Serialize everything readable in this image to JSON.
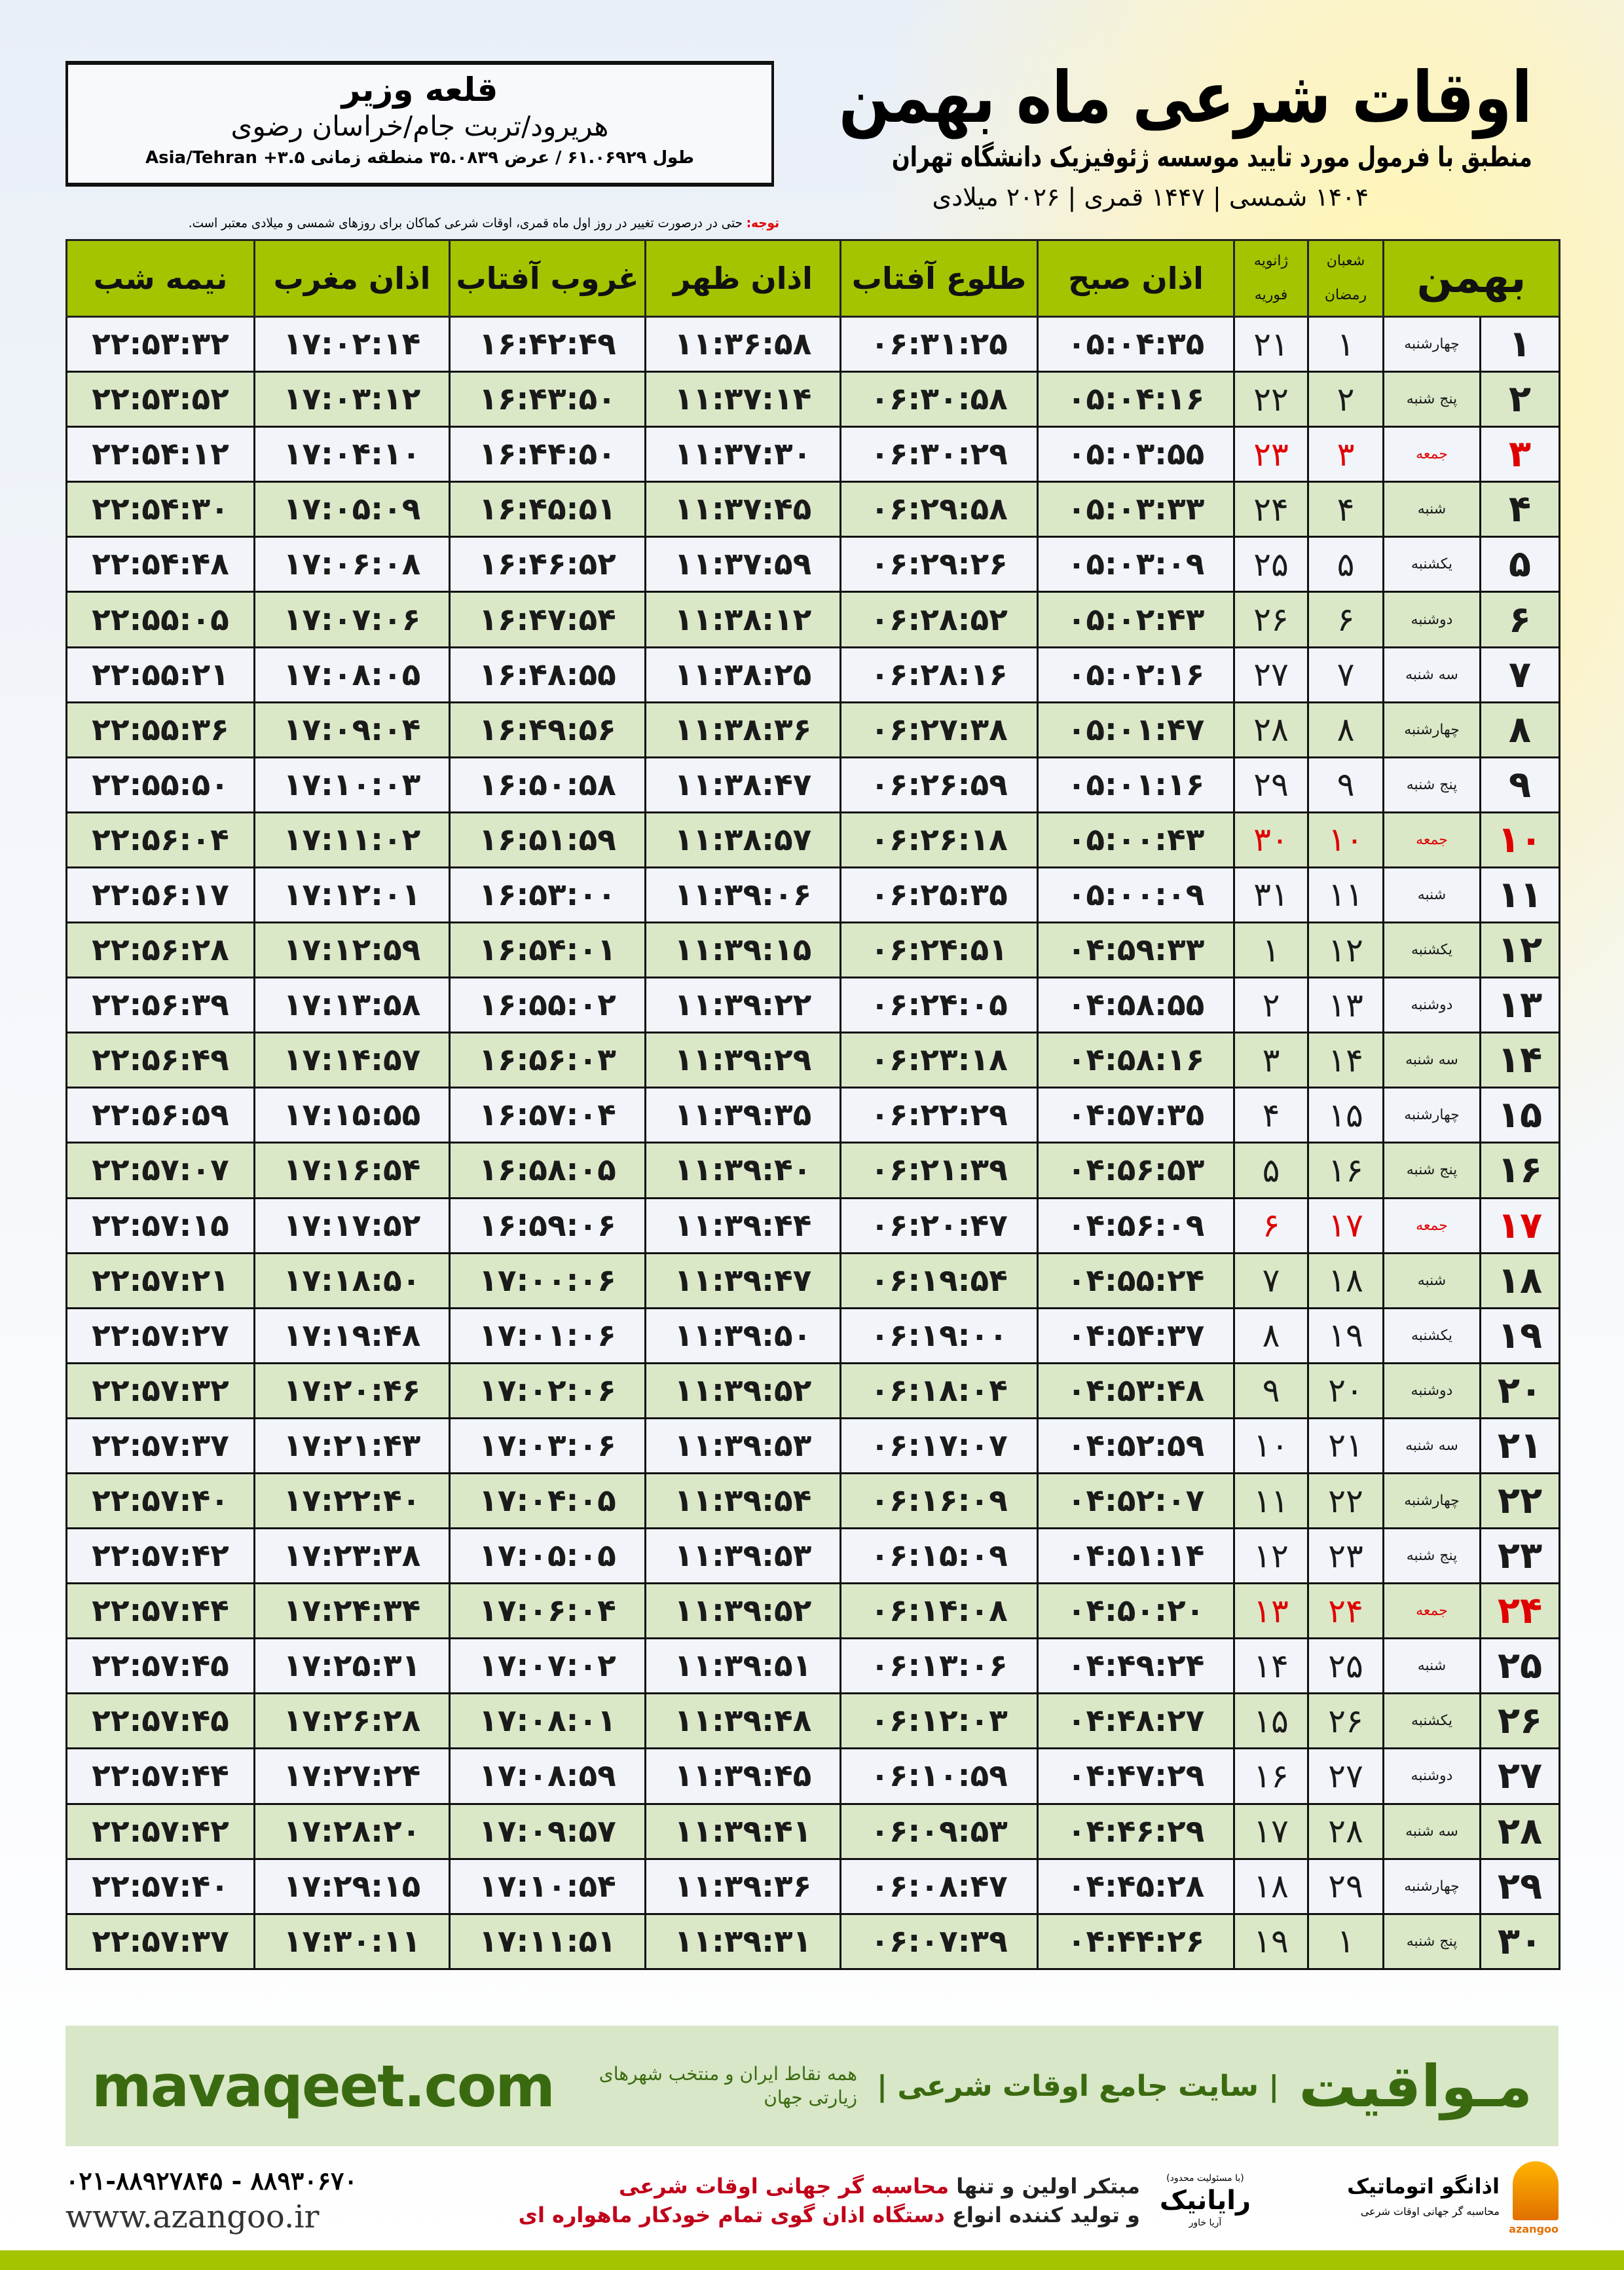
{
  "header": {
    "title": "اوقات شرعی ماه بهمن",
    "subtitle": "منطبق با فرمول مورد تایید موسسه ژئوفیزیک دانشگاه تهران",
    "dates": "۱۴۰۴ شمسی | ۱۴۴۷ قمری | ۲۰۲۶ میلادی"
  },
  "location": {
    "city": "قلعه وزیر",
    "region": "هریرود/تربت جام/خراسان رضوی",
    "coords": "طول ۶۱.۰۶۹۲۹ / عرض ۳۵.۰۸۳۹ منطقه زمانی ۳.۵+ Asia/Tehran"
  },
  "note": {
    "label": "توجه:",
    "text": " حتی در درصورت تغییر در روز اول ماه قمری، اوقات شرعی کماکان برای روزهای شمسی و میلادی معتبر است."
  },
  "table": {
    "headers": {
      "month": "بهمن",
      "hijri_top": "شعبان",
      "hijri_bottom": "رمضان",
      "greg_top": "ژانویه",
      "greg_bottom": "فوریه",
      "fajr": "اذان صبح",
      "sunrise": "طلوع آفتاب",
      "dhuhr": "اذان ظهر",
      "sunset": "غروب آفتاب",
      "maghrib": "اذان مغرب",
      "midnight": "نیمه شب"
    },
    "friday_color": "#e00000",
    "rows": [
      [
        "۱",
        "چهارشنبه",
        "۱",
        "۲۱",
        "۰۵:۰۴:۳۵",
        "۰۶:۳۱:۲۵",
        "۱۱:۳۶:۵۸",
        "۱۶:۴۲:۴۹",
        "۱۷:۰۲:۱۴",
        "۲۲:۵۳:۳۲"
      ],
      [
        "۲",
        "پنج شنبه",
        "۲",
        "۲۲",
        "۰۵:۰۴:۱۶",
        "۰۶:۳۰:۵۸",
        "۱۱:۳۷:۱۴",
        "۱۶:۴۳:۵۰",
        "۱۷:۰۳:۱۲",
        "۲۲:۵۳:۵۲"
      ],
      [
        "۳",
        "جمعه",
        "۳",
        "۲۳",
        "۰۵:۰۳:۵۵",
        "۰۶:۳۰:۲۹",
        "۱۱:۳۷:۳۰",
        "۱۶:۴۴:۵۰",
        "۱۷:۰۴:۱۰",
        "۲۲:۵۴:۱۲"
      ],
      [
        "۴",
        "شنبه",
        "۴",
        "۲۴",
        "۰۵:۰۳:۳۳",
        "۰۶:۲۹:۵۸",
        "۱۱:۳۷:۴۵",
        "۱۶:۴۵:۵۱",
        "۱۷:۰۵:۰۹",
        "۲۲:۵۴:۳۰"
      ],
      [
        "۵",
        "یکشنبه",
        "۵",
        "۲۵",
        "۰۵:۰۳:۰۹",
        "۰۶:۲۹:۲۶",
        "۱۱:۳۷:۵۹",
        "۱۶:۴۶:۵۲",
        "۱۷:۰۶:۰۸",
        "۲۲:۵۴:۴۸"
      ],
      [
        "۶",
        "دوشنبه",
        "۶",
        "۲۶",
        "۰۵:۰۲:۴۳",
        "۰۶:۲۸:۵۲",
        "۱۱:۳۸:۱۲",
        "۱۶:۴۷:۵۴",
        "۱۷:۰۷:۰۶",
        "۲۲:۵۵:۰۵"
      ],
      [
        "۷",
        "سه شنبه",
        "۷",
        "۲۷",
        "۰۵:۰۲:۱۶",
        "۰۶:۲۸:۱۶",
        "۱۱:۳۸:۲۵",
        "۱۶:۴۸:۵۵",
        "۱۷:۰۸:۰۵",
        "۲۲:۵۵:۲۱"
      ],
      [
        "۸",
        "چهارشنبه",
        "۸",
        "۲۸",
        "۰۵:۰۱:۴۷",
        "۰۶:۲۷:۳۸",
        "۱۱:۳۸:۳۶",
        "۱۶:۴۹:۵۶",
        "۱۷:۰۹:۰۴",
        "۲۲:۵۵:۳۶"
      ],
      [
        "۹",
        "پنج شنبه",
        "۹",
        "۲۹",
        "۰۵:۰۱:۱۶",
        "۰۶:۲۶:۵۹",
        "۱۱:۳۸:۴۷",
        "۱۶:۵۰:۵۸",
        "۱۷:۱۰:۰۳",
        "۲۲:۵۵:۵۰"
      ],
      [
        "۱۰",
        "جمعه",
        "۱۰",
        "۳۰",
        "۰۵:۰۰:۴۳",
        "۰۶:۲۶:۱۸",
        "۱۱:۳۸:۵۷",
        "۱۶:۵۱:۵۹",
        "۱۷:۱۱:۰۲",
        "۲۲:۵۶:۰۴"
      ],
      [
        "۱۱",
        "شنبه",
        "۱۱",
        "۳۱",
        "۰۵:۰۰:۰۹",
        "۰۶:۲۵:۳۵",
        "۱۱:۳۹:۰۶",
        "۱۶:۵۳:۰۰",
        "۱۷:۱۲:۰۱",
        "۲۲:۵۶:۱۷"
      ],
      [
        "۱۲",
        "یکشنبه",
        "۱۲",
        "۱",
        "۰۴:۵۹:۳۳",
        "۰۶:۲۴:۵۱",
        "۱۱:۳۹:۱۵",
        "۱۶:۵۴:۰۱",
        "۱۷:۱۲:۵۹",
        "۲۲:۵۶:۲۸"
      ],
      [
        "۱۳",
        "دوشنبه",
        "۱۳",
        "۲",
        "۰۴:۵۸:۵۵",
        "۰۶:۲۴:۰۵",
        "۱۱:۳۹:۲۲",
        "۱۶:۵۵:۰۲",
        "۱۷:۱۳:۵۸",
        "۲۲:۵۶:۳۹"
      ],
      [
        "۱۴",
        "سه شنبه",
        "۱۴",
        "۳",
        "۰۴:۵۸:۱۶",
        "۰۶:۲۳:۱۸",
        "۱۱:۳۹:۲۹",
        "۱۶:۵۶:۰۳",
        "۱۷:۱۴:۵۷",
        "۲۲:۵۶:۴۹"
      ],
      [
        "۱۵",
        "چهارشنبه",
        "۱۵",
        "۴",
        "۰۴:۵۷:۳۵",
        "۰۶:۲۲:۲۹",
        "۱۱:۳۹:۳۵",
        "۱۶:۵۷:۰۴",
        "۱۷:۱۵:۵۵",
        "۲۲:۵۶:۵۹"
      ],
      [
        "۱۶",
        "پنج شنبه",
        "۱۶",
        "۵",
        "۰۴:۵۶:۵۳",
        "۰۶:۲۱:۳۹",
        "۱۱:۳۹:۴۰",
        "۱۶:۵۸:۰۵",
        "۱۷:۱۶:۵۴",
        "۲۲:۵۷:۰۷"
      ],
      [
        "۱۷",
        "جمعه",
        "۱۷",
        "۶",
        "۰۴:۵۶:۰۹",
        "۰۶:۲۰:۴۷",
        "۱۱:۳۹:۴۴",
        "۱۶:۵۹:۰۶",
        "۱۷:۱۷:۵۲",
        "۲۲:۵۷:۱۵"
      ],
      [
        "۱۸",
        "شنبه",
        "۱۸",
        "۷",
        "۰۴:۵۵:۲۴",
        "۰۶:۱۹:۵۴",
        "۱۱:۳۹:۴۷",
        "۱۷:۰۰:۰۶",
        "۱۷:۱۸:۵۰",
        "۲۲:۵۷:۲۱"
      ],
      [
        "۱۹",
        "یکشنبه",
        "۱۹",
        "۸",
        "۰۴:۵۴:۳۷",
        "۰۶:۱۹:۰۰",
        "۱۱:۳۹:۵۰",
        "۱۷:۰۱:۰۶",
        "۱۷:۱۹:۴۸",
        "۲۲:۵۷:۲۷"
      ],
      [
        "۲۰",
        "دوشنبه",
        "۲۰",
        "۹",
        "۰۴:۵۳:۴۸",
        "۰۶:۱۸:۰۴",
        "۱۱:۳۹:۵۲",
        "۱۷:۰۲:۰۶",
        "۱۷:۲۰:۴۶",
        "۲۲:۵۷:۳۲"
      ],
      [
        "۲۱",
        "سه شنبه",
        "۲۱",
        "۱۰",
        "۰۴:۵۲:۵۹",
        "۰۶:۱۷:۰۷",
        "۱۱:۳۹:۵۳",
        "۱۷:۰۳:۰۶",
        "۱۷:۲۱:۴۳",
        "۲۲:۵۷:۳۷"
      ],
      [
        "۲۲",
        "چهارشنبه",
        "۲۲",
        "۱۱",
        "۰۴:۵۲:۰۷",
        "۰۶:۱۶:۰۹",
        "۱۱:۳۹:۵۴",
        "۱۷:۰۴:۰۵",
        "۱۷:۲۲:۴۰",
        "۲۲:۵۷:۴۰"
      ],
      [
        "۲۳",
        "پنج شنبه",
        "۲۳",
        "۱۲",
        "۰۴:۵۱:۱۴",
        "۰۶:۱۵:۰۹",
        "۱۱:۳۹:۵۳",
        "۱۷:۰۵:۰۵",
        "۱۷:۲۳:۳۸",
        "۲۲:۵۷:۴۲"
      ],
      [
        "۲۴",
        "جمعه",
        "۲۴",
        "۱۳",
        "۰۴:۵۰:۲۰",
        "۰۶:۱۴:۰۸",
        "۱۱:۳۹:۵۲",
        "۱۷:۰۶:۰۴",
        "۱۷:۲۴:۳۴",
        "۲۲:۵۷:۴۴"
      ],
      [
        "۲۵",
        "شنبه",
        "۲۵",
        "۱۴",
        "۰۴:۴۹:۲۴",
        "۰۶:۱۳:۰۶",
        "۱۱:۳۹:۵۱",
        "۱۷:۰۷:۰۲",
        "۱۷:۲۵:۳۱",
        "۲۲:۵۷:۴۵"
      ],
      [
        "۲۶",
        "یکشنبه",
        "۲۶",
        "۱۵",
        "۰۴:۴۸:۲۷",
        "۰۶:۱۲:۰۳",
        "۱۱:۳۹:۴۸",
        "۱۷:۰۸:۰۱",
        "۱۷:۲۶:۲۸",
        "۲۲:۵۷:۴۵"
      ],
      [
        "۲۷",
        "دوشنبه",
        "۲۷",
        "۱۶",
        "۰۴:۴۷:۲۹",
        "۰۶:۱۰:۵۹",
        "۱۱:۳۹:۴۵",
        "۱۷:۰۸:۵۹",
        "۱۷:۲۷:۲۴",
        "۲۲:۵۷:۴۴"
      ],
      [
        "۲۸",
        "سه شنبه",
        "۲۸",
        "۱۷",
        "۰۴:۴۶:۲۹",
        "۰۶:۰۹:۵۳",
        "۱۱:۳۹:۴۱",
        "۱۷:۰۹:۵۷",
        "۱۷:۲۸:۲۰",
        "۲۲:۵۷:۴۲"
      ],
      [
        "۲۹",
        "چهارشنبه",
        "۲۹",
        "۱۸",
        "۰۴:۴۵:۲۸",
        "۰۶:۰۸:۴۷",
        "۱۱:۳۹:۳۶",
        "۱۷:۱۰:۵۴",
        "۱۷:۲۹:۱۵",
        "۲۲:۵۷:۴۰"
      ],
      [
        "۳۰",
        "پنج شنبه",
        "۱",
        "۱۹",
        "۰۴:۴۴:۲۶",
        "۰۶:۰۷:۳۹",
        "۱۱:۳۹:۳۱",
        "۱۷:۱۱:۵۱",
        "۱۷:۳۰:۱۱",
        "۲۲:۵۷:۳۷"
      ]
    ]
  },
  "footer": {
    "brand": "مـواقیت",
    "slogan": "| سایت جامع اوقات شرعی |",
    "sub_slogan": "همه نقاط ایران و منتخب شهرهای زیارتی جهان",
    "site": "mavaqeet.com",
    "phone": "۰۲۱-۸۸۹۲۷۸۴۵ - ۸۸۹۳۰۶۷۰",
    "web": "www.azangoo.ir",
    "promo_line1_a": "مبتکر اولین و تنها ",
    "promo_line1_b": "محاسبه گر جهانی اوقات شرعی",
    "promo_line2_a": "و تولید کننده انواع ",
    "promo_line2_b": "دستگاه اذان گوی تمام خودکار ماهواره ای",
    "logo1_small": "(با مسئولیت محدود)",
    "logo1": "رایانیک",
    "logo1_side": "آریا خاور",
    "logo2": "اذانگو اتوماتیک",
    "logo2_sub": "محاسبه گر جهانی اوقات شرعی",
    "logo2_en": "azangoo",
    "accent": "#a5c400",
    "band_color": "#d8e7c7"
  }
}
